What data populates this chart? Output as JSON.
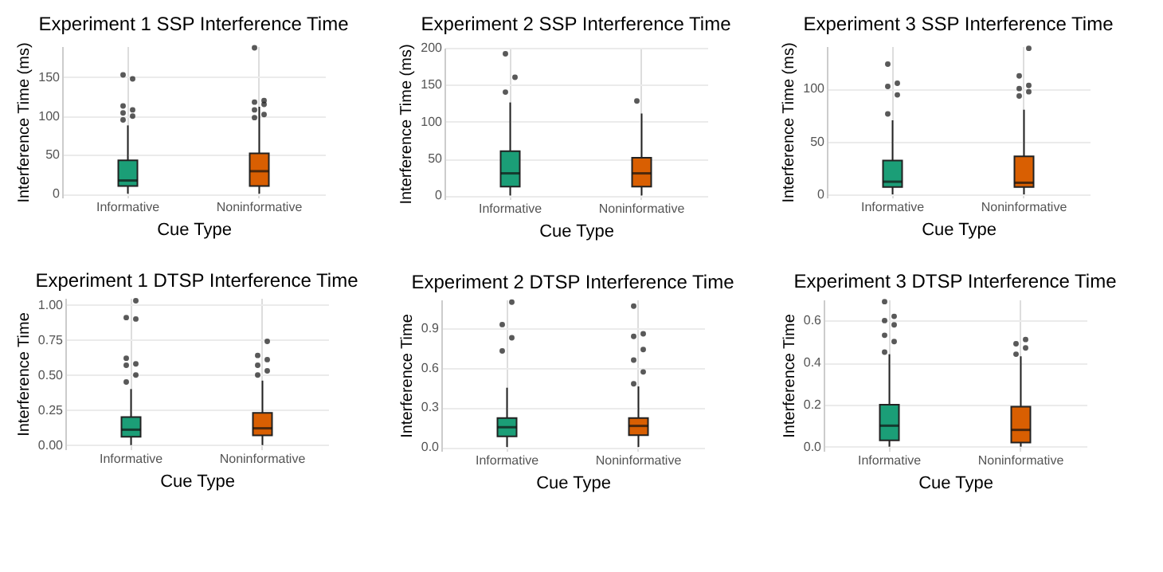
{
  "chart_data": [
    {
      "type": "box",
      "title": "Experiment 1 SSP Interference Time",
      "xlabel": "Cue Type",
      "ylabel": "Interference Time (ms)",
      "categories": [
        "Informative",
        "Noninformative"
      ],
      "colors": [
        "#1b9e77",
        "#d95f02"
      ],
      "ylim": [
        -5,
        190
      ],
      "yticks": [
        0,
        50,
        100,
        150
      ],
      "grid": true,
      "boxes": [
        {
          "low": 0,
          "q1": 10,
          "median": 17,
          "q3": 43,
          "high": 88,
          "outliers": [
            95,
            100,
            104,
            108,
            113,
            148,
            153
          ]
        },
        {
          "low": 0,
          "q1": 10,
          "median": 29,
          "q3": 52,
          "high": 112,
          "outliers": [
            98,
            102,
            108,
            115,
            118,
            120,
            188
          ]
        }
      ]
    },
    {
      "type": "box",
      "title": "Experiment 2 SSP Interference Time",
      "xlabel": "Cue Type",
      "ylabel": "Interference Time (ms)",
      "categories": [
        "Informative",
        "Noninformative"
      ],
      "colors": [
        "#1b9e77",
        "#d95f02"
      ],
      "ylim": [
        -5,
        200
      ],
      "yticks": [
        0,
        50,
        100,
        150,
        200
      ],
      "grid": true,
      "boxes": [
        {
          "low": 0,
          "q1": 12,
          "median": 30,
          "q3": 60,
          "high": 126,
          "outliers": [
            140,
            160,
            192
          ]
        },
        {
          "low": 0,
          "q1": 12,
          "median": 30,
          "q3": 51,
          "high": 111,
          "outliers": [
            128
          ]
        }
      ]
    },
    {
      "type": "box",
      "title": "Experiment 3 SSP Interference Time",
      "xlabel": "Cue Type",
      "ylabel": "Interference Time (ms)",
      "categories": [
        "Informative",
        "Noninformative"
      ],
      "colors": [
        "#1b9e77",
        "#d95f02"
      ],
      "ylim": [
        -3,
        140
      ],
      "yticks": [
        0,
        50,
        100
      ],
      "grid": true,
      "boxes": [
        {
          "low": 0,
          "q1": 7,
          "median": 12,
          "q3": 32,
          "high": 70,
          "outliers": [
            76,
            94,
            102,
            105,
            123
          ]
        },
        {
          "low": 0,
          "q1": 7,
          "median": 11,
          "q3": 36,
          "high": 80,
          "outliers": [
            93,
            97,
            100,
            103,
            112,
            138
          ]
        }
      ]
    },
    {
      "type": "box",
      "title": "Experiment 1 DTSP Interference Time",
      "xlabel": "Cue Type",
      "ylabel": "Interference Time",
      "categories": [
        "Informative",
        "Noninformative"
      ],
      "colors": [
        "#1b9e77",
        "#d95f02"
      ],
      "ylim": [
        -0.03,
        1.05
      ],
      "yticks": [
        {
          "value": 0,
          "label": "0.00"
        },
        {
          "value": 0.25,
          "label": "0.25"
        },
        {
          "value": 0.5,
          "label": "0.50"
        },
        {
          "value": 0.75,
          "label": "0.75"
        },
        {
          "value": 1,
          "label": "1.00"
        }
      ],
      "grid": true,
      "boxes": [
        {
          "low": 0,
          "q1": 0.06,
          "median": 0.11,
          "q3": 0.2,
          "high": 0.4,
          "outliers": [
            0.45,
            0.5,
            0.57,
            0.58,
            0.62,
            0.9,
            0.91,
            1.03
          ]
        },
        {
          "low": 0,
          "q1": 0.07,
          "median": 0.12,
          "q3": 0.23,
          "high": 0.46,
          "outliers": [
            0.5,
            0.53,
            0.57,
            0.61,
            0.64,
            0.74
          ]
        }
      ]
    },
    {
      "type": "box",
      "title": "Experiment 2 DTSP Interference Time",
      "xlabel": "Cue Type",
      "ylabel": "Interference Time",
      "categories": [
        "Informative",
        "Noninformative"
      ],
      "colors": [
        "#1b9e77",
        "#d95f02"
      ],
      "ylim": [
        -0.03,
        1.12
      ],
      "yticks": [
        {
          "value": 0,
          "label": "0.0"
        },
        {
          "value": 0.3,
          "label": "0.3"
        },
        {
          "value": 0.6,
          "label": "0.6"
        },
        {
          "value": 0.9,
          "label": "0.9"
        }
      ],
      "grid": true,
      "boxes": [
        {
          "low": 0,
          "q1": 0.08,
          "median": 0.15,
          "q3": 0.22,
          "high": 0.45,
          "outliers": [
            0.73,
            0.83,
            0.93,
            1.1
          ]
        },
        {
          "low": 0,
          "q1": 0.09,
          "median": 0.16,
          "q3": 0.22,
          "high": 0.46,
          "outliers": [
            0.48,
            0.57,
            0.66,
            0.74,
            0.84,
            0.86,
            1.07
          ]
        }
      ]
    },
    {
      "type": "box",
      "title": "Experiment 3 DTSP Interference Time",
      "xlabel": "Cue Type",
      "ylabel": "Interference Time",
      "categories": [
        "Informative",
        "Noninformative"
      ],
      "colors": [
        "#1b9e77",
        "#d95f02"
      ],
      "ylim": [
        -0.02,
        0.7
      ],
      "yticks": [
        {
          "value": 0,
          "label": "0.0"
        },
        {
          "value": 0.2,
          "label": "0.2"
        },
        {
          "value": 0.4,
          "label": "0.4"
        },
        {
          "value": 0.6,
          "label": "0.6"
        }
      ],
      "grid": true,
      "boxes": [
        {
          "low": 0,
          "q1": 0.03,
          "median": 0.1,
          "q3": 0.2,
          "high": 0.44,
          "outliers": [
            0.45,
            0.5,
            0.53,
            0.58,
            0.6,
            0.62,
            0.69
          ]
        },
        {
          "low": 0,
          "q1": 0.02,
          "median": 0.08,
          "q3": 0.19,
          "high": 0.43,
          "outliers": [
            0.44,
            0.47,
            0.49,
            0.51
          ]
        }
      ]
    }
  ]
}
